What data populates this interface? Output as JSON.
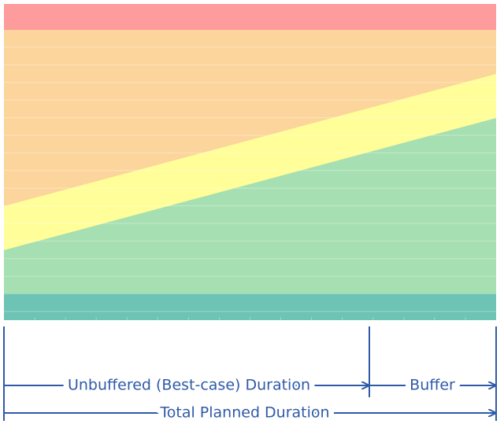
{
  "labels": {
    "unbuffered": "Unbuffered (Best-case) Duration",
    "buffer": "Buffer",
    "total": "Total Planned Duration"
  }
}
